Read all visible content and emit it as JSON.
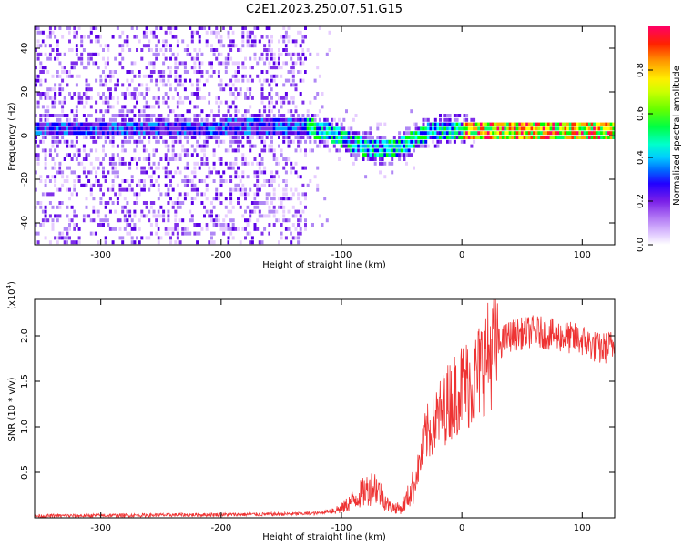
{
  "figure_title": "C2E1.2023.250.07.51.G15",
  "chart_data": [
    {
      "type": "heatmap",
      "xlabel": "Height of straight line (km)",
      "ylabel": "Frequency (Hz)",
      "xlim": [
        -355,
        127
      ],
      "ylim": [
        -50,
        50
      ],
      "x_ticks": [
        -300,
        -200,
        -100,
        0,
        100
      ],
      "y_ticks": [
        -40,
        -20,
        0,
        20,
        40
      ],
      "colorbar": {
        "label": "Normalized spectral amplitude",
        "range": [
          0,
          1
        ],
        "ticks": [
          "0.0",
          "0.2",
          "0.4",
          "0.6",
          "0.8"
        ],
        "colors": [
          "#ffffff",
          "#e6ccff",
          "#b088f5",
          "#7f2fea",
          "#5a00e6",
          "#0000ff",
          "#00aaff",
          "#00ffff",
          "#00ff66",
          "#00ff00",
          "#aaff00",
          "#ffff00",
          "#ffaa00",
          "#ff3300",
          "#ff0066"
        ]
      },
      "ridge_center": [
        {
          "x": -355,
          "y": 2
        },
        {
          "x": -200,
          "y": 2
        },
        {
          "x": -130,
          "y": 3
        },
        {
          "x": -110,
          "y": 0
        },
        {
          "x": -90,
          "y": -5
        },
        {
          "x": -70,
          "y": -8
        },
        {
          "x": -55,
          "y": -7
        },
        {
          "x": -40,
          "y": -3
        },
        {
          "x": -30,
          "y": 0
        },
        {
          "x": -20,
          "y": 1
        },
        {
          "x": 0,
          "y": 2
        },
        {
          "x": 10,
          "y": 0
        },
        {
          "x": 127,
          "y": 1
        }
      ]
    },
    {
      "type": "line",
      "xlabel": "Height of straight line (km)",
      "ylabel": "SNR (10 * v/v)",
      "y_multiplier_label": "(x10",
      "y_multiplier_exp": "4",
      "y_multiplier_close": ")",
      "xlim": [
        -355,
        127
      ],
      "ylim": [
        0,
        2.4
      ],
      "x_ticks": [
        -300,
        -200,
        -100,
        0,
        100
      ],
      "y_ticks": [
        "0.5",
        "1.0",
        "1.5",
        "2.0"
      ],
      "line_color": "#ee3333",
      "series_envelope": [
        {
          "x": -355,
          "y": 0.02
        },
        {
          "x": -250,
          "y": 0.03
        },
        {
          "x": -150,
          "y": 0.04
        },
        {
          "x": -120,
          "y": 0.05
        },
        {
          "x": -100,
          "y": 0.1
        },
        {
          "x": -80,
          "y": 0.3
        },
        {
          "x": -72,
          "y": 0.35
        },
        {
          "x": -60,
          "y": 0.12
        },
        {
          "x": -50,
          "y": 0.1
        },
        {
          "x": -40,
          "y": 0.35
        },
        {
          "x": -35,
          "y": 0.6
        },
        {
          "x": -30,
          "y": 0.9
        },
        {
          "x": -20,
          "y": 1.1
        },
        {
          "x": -10,
          "y": 1.3
        },
        {
          "x": 0,
          "y": 1.45
        },
        {
          "x": 10,
          "y": 1.5
        },
        {
          "x": 20,
          "y": 1.75
        },
        {
          "x": 30,
          "y": 1.9
        },
        {
          "x": 40,
          "y": 2.0
        },
        {
          "x": 60,
          "y": 2.05
        },
        {
          "x": 80,
          "y": 2.0
        },
        {
          "x": 100,
          "y": 1.95
        },
        {
          "x": 115,
          "y": 1.85
        },
        {
          "x": 127,
          "y": 1.9
        }
      ]
    }
  ]
}
